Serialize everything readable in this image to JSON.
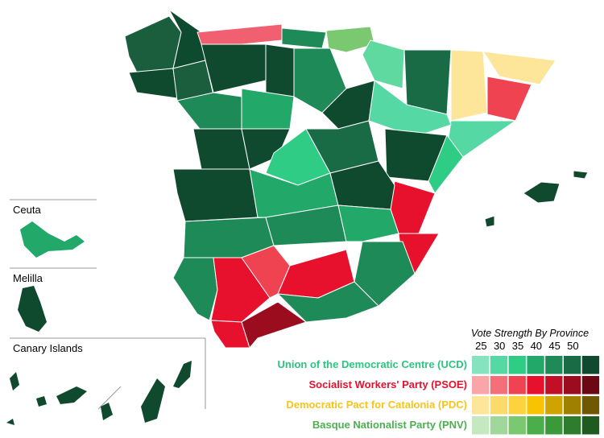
{
  "insets": [
    "Ceuta",
    "Melilla",
    "Canary Islands"
  ],
  "legend": {
    "title": "Vote Strength By Province",
    "scale": [
      25,
      30,
      35,
      40,
      45,
      50
    ],
    "parties": [
      {
        "name": "Union of the Democratic Centre (UCD)",
        "color": "#2bc57f",
        "swatches": [
          "#86e3c0",
          "#55d8a4",
          "#2ecc85",
          "#22a96a",
          "#1e8a57",
          "#186b45",
          "#0f4a2f"
        ]
      },
      {
        "name": "Socialist Workers' Party (PSOE)",
        "color": "#e8112d",
        "swatches": [
          "#f9a5aa",
          "#f46f78",
          "#ef4352",
          "#e8112d",
          "#c20f26",
          "#9a0c1e",
          "#6b0814"
        ]
      },
      {
        "name": "Democratic Pact for Catalonia (PDC)",
        "color": "#f5c518",
        "swatches": [
          "#fde59a",
          "#fddb6a",
          "#fcd23e",
          "#f8c300",
          "#d0a400",
          "#a08000",
          "#6f5800"
        ]
      },
      {
        "name": "Basque Nationalist Party (PNV)",
        "color": "#4caf50",
        "swatches": [
          "#c5e8c0",
          "#9fd89a",
          "#7ac870",
          "#4aae4a",
          "#3a9a3a",
          "#2e7d2e",
          "#1f5a1f"
        ]
      }
    ]
  }
}
